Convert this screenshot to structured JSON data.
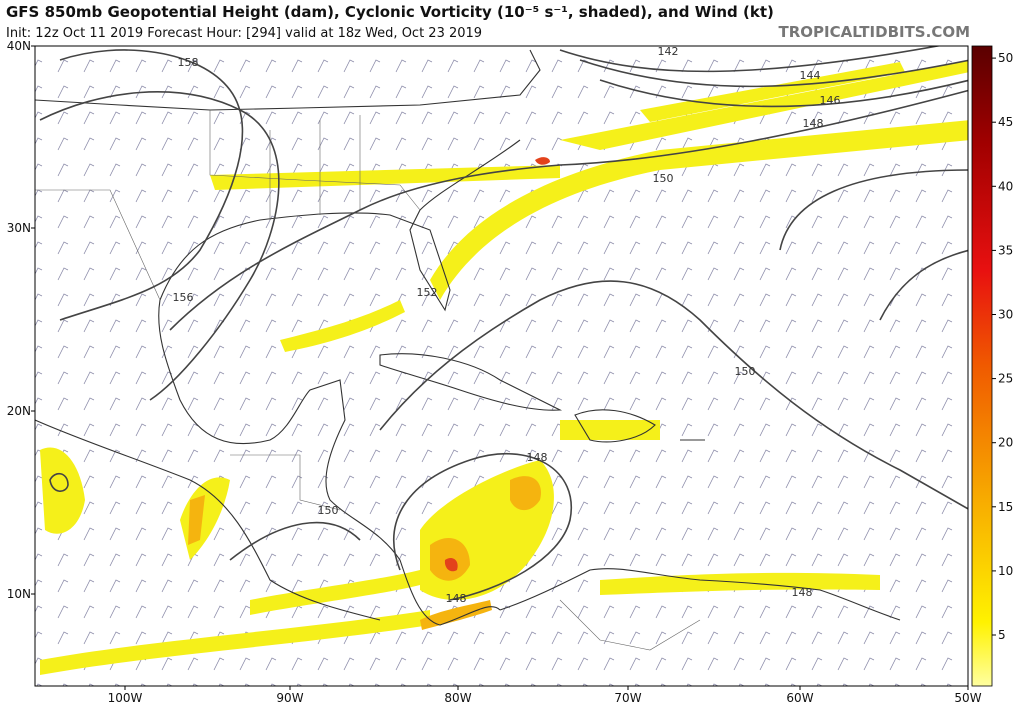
{
  "header": {
    "title": "GFS 850mb Geopotential Height (dam), Cyclonic Vorticity (10⁻⁵ s⁻¹, shaded), and Wind (kt)",
    "subtitle": "Init: 12z Oct 11 2019   Forecast Hour: [294]   valid at 18z Wed, Oct 23 2019",
    "brand": "TROPICALTIDBITS.COM"
  },
  "map": {
    "lat_labels": [
      "40N",
      "30N",
      "20N",
      "10N"
    ],
    "lon_labels": [
      "100W",
      "90W",
      "80W",
      "70W",
      "60W",
      "50W"
    ],
    "contour_labels": [
      "158",
      "156",
      "152",
      "150",
      "148",
      "148",
      "150",
      "150",
      "148",
      "146",
      "144",
      "142",
      "148"
    ]
  },
  "colorbar": {
    "ticks": [
      5,
      10,
      15,
      20,
      25,
      30,
      35,
      40,
      45,
      50
    ]
  }
}
